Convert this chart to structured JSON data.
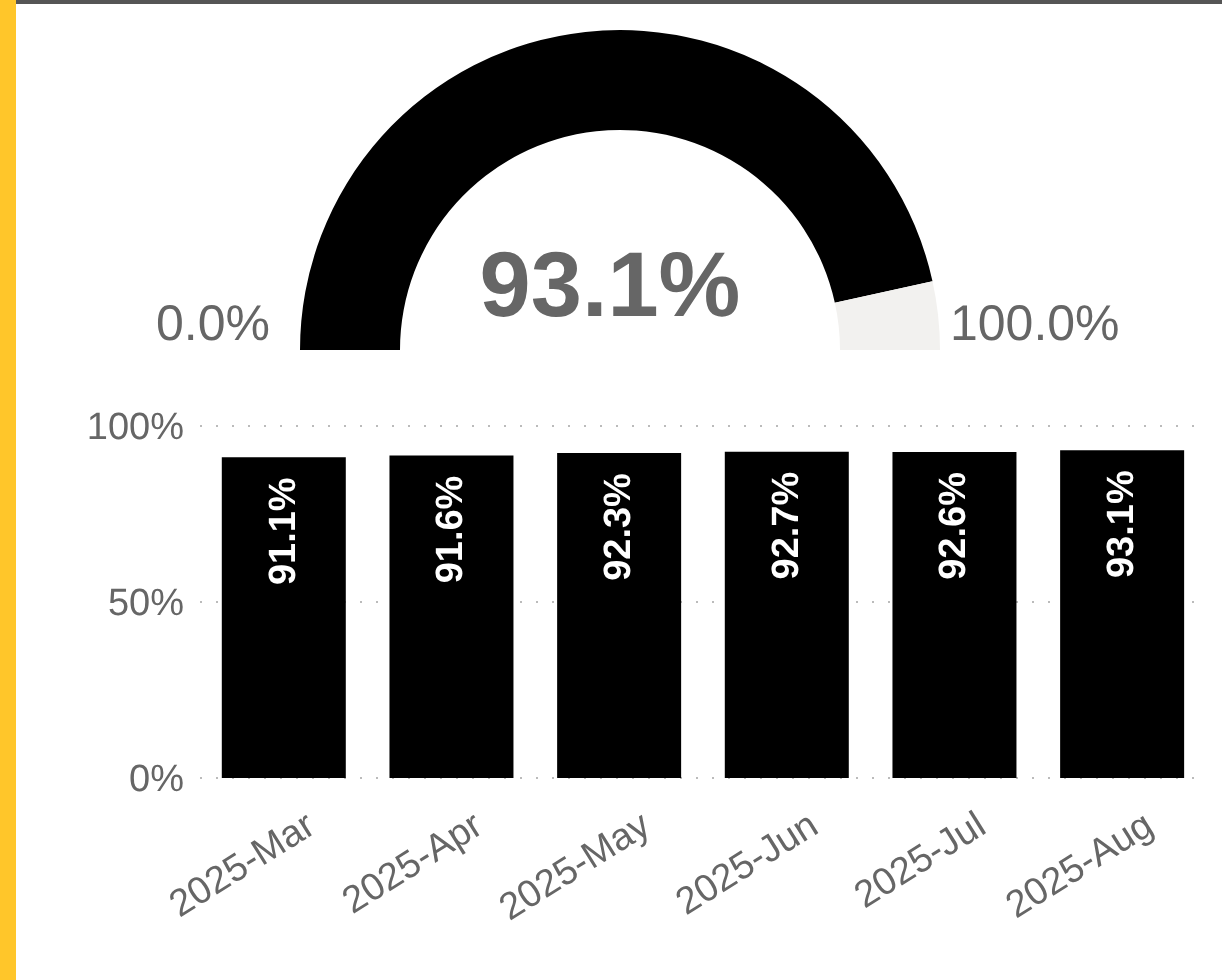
{
  "chart_data": [
    {
      "type": "donut",
      "categories": [
        null,
        null
      ],
      "values": [
        93.1,
        6.9
      ],
      "colors": [
        "#000000",
        "#f2f1ef"
      ],
      "value_labels": [
        "93.1%",
        null
      ],
      "annotations": [
        "0.0%",
        "100.0%"
      ]
    },
    {
      "type": "bar",
      "categories": [
        "2025-Mar",
        "2025-Apr",
        "2025-May",
        "2025-Jun",
        "2025-Jul",
        "2025-Aug"
      ],
      "values": [
        91.1,
        91.6,
        92.3,
        92.7,
        92.6,
        93.1
      ],
      "color": "#000000",
      "value_labels": [
        "91.1%",
        "91.6%",
        "92.3%",
        "92.7%",
        "92.6%",
        "93.1%"
      ],
      "ylim": [
        0,
        100
      ],
      "yticks": [
        {
          "value": 0,
          "label": "0%"
        },
        {
          "value": 50,
          "label": "50%"
        },
        {
          "value": 100,
          "label": "100%"
        }
      ],
      "grid": "y"
    }
  ]
}
